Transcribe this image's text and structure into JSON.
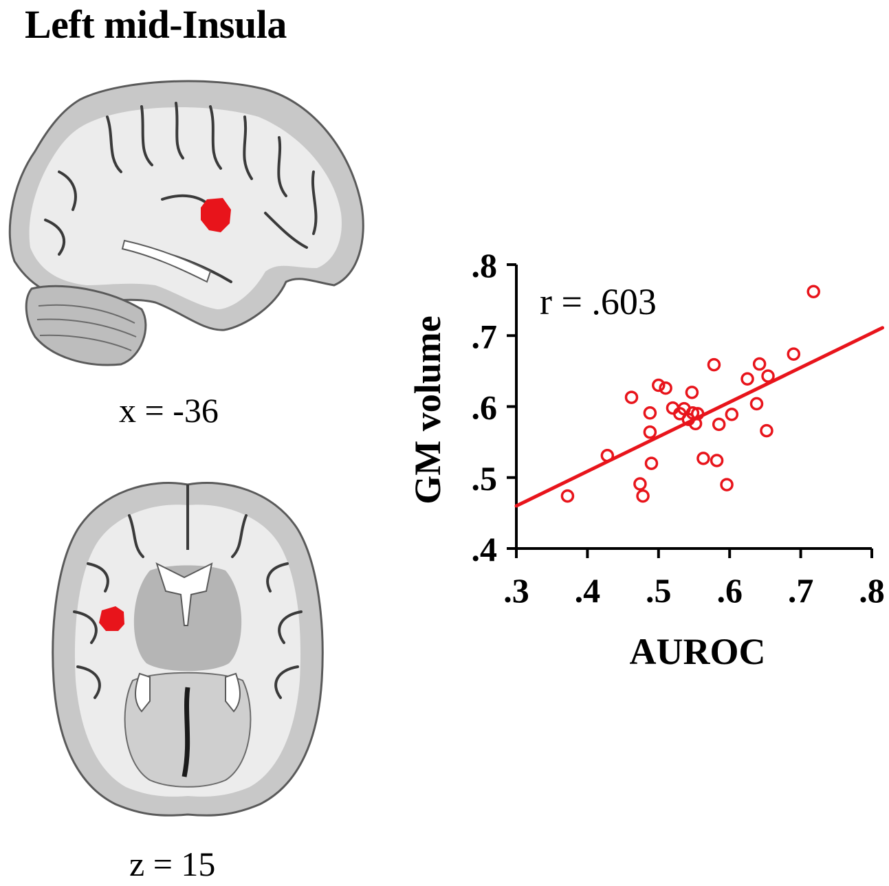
{
  "figure": {
    "title": "Left mid-Insula",
    "sagittal_label": "x = -36",
    "axial_label": "z = 15"
  },
  "colors": {
    "accent": "#e8141b",
    "axis": "#000000",
    "brain_gray": "#c8c8c8",
    "brain_light": "#ececec",
    "brain_dark": "#3a3a3a"
  },
  "chart_data": {
    "type": "scatter",
    "xlabel": "AUROC",
    "ylabel": "GM volume",
    "annotation": "r = .603",
    "xlim": [
      0.3,
      0.8
    ],
    "ylim": [
      0.4,
      0.8
    ],
    "xticks": [
      0.3,
      0.4,
      0.5,
      0.6,
      0.7,
      0.8
    ],
    "xtick_labels": [
      ".3",
      ".4",
      ".5",
      ".6",
      ".7",
      ".8"
    ],
    "yticks": [
      0.4,
      0.5,
      0.6,
      0.7,
      0.8
    ],
    "ytick_labels": [
      ".4",
      ".5",
      ".6",
      ".7",
      ".8"
    ],
    "grid": false,
    "marker": "open-circle",
    "points": [
      {
        "x": 0.372,
        "y": 0.474
      },
      {
        "x": 0.428,
        "y": 0.531
      },
      {
        "x": 0.462,
        "y": 0.613
      },
      {
        "x": 0.474,
        "y": 0.491
      },
      {
        "x": 0.478,
        "y": 0.474
      },
      {
        "x": 0.488,
        "y": 0.591
      },
      {
        "x": 0.488,
        "y": 0.564
      },
      {
        "x": 0.49,
        "y": 0.52
      },
      {
        "x": 0.5,
        "y": 0.63
      },
      {
        "x": 0.51,
        "y": 0.626
      },
      {
        "x": 0.52,
        "y": 0.598
      },
      {
        "x": 0.53,
        "y": 0.59
      },
      {
        "x": 0.536,
        "y": 0.597
      },
      {
        "x": 0.542,
        "y": 0.582
      },
      {
        "x": 0.547,
        "y": 0.62
      },
      {
        "x": 0.548,
        "y": 0.591
      },
      {
        "x": 0.552,
        "y": 0.576
      },
      {
        "x": 0.555,
        "y": 0.59
      },
      {
        "x": 0.563,
        "y": 0.527
      },
      {
        "x": 0.578,
        "y": 0.659
      },
      {
        "x": 0.582,
        "y": 0.524
      },
      {
        "x": 0.585,
        "y": 0.575
      },
      {
        "x": 0.596,
        "y": 0.49
      },
      {
        "x": 0.603,
        "y": 0.589
      },
      {
        "x": 0.625,
        "y": 0.639
      },
      {
        "x": 0.638,
        "y": 0.604
      },
      {
        "x": 0.642,
        "y": 0.66
      },
      {
        "x": 0.652,
        "y": 0.566
      },
      {
        "x": 0.654,
        "y": 0.643
      },
      {
        "x": 0.69,
        "y": 0.674
      },
      {
        "x": 0.718,
        "y": 0.762
      }
    ],
    "fit_line": {
      "x": [
        0.3,
        0.815
      ],
      "y": [
        0.46,
        0.711
      ]
    }
  }
}
